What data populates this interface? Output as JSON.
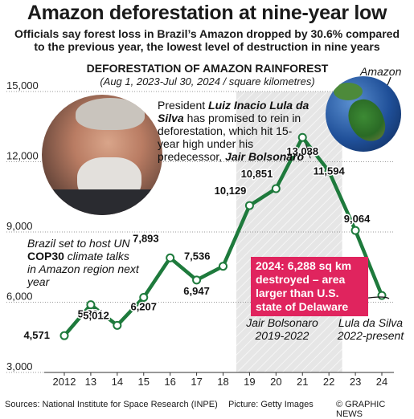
{
  "header": {
    "title": "Amazon deforestation at nine-year low",
    "subtitle_line1": "Officials say forest loss in Brazil’s Amazon dropped by 30.6% compared",
    "subtitle_line2": "to the previous year, the lowest level of destruction in nine years"
  },
  "chart_data": {
    "type": "line",
    "title": "DEFORESTATION OF AMAZON RAINFOREST",
    "subtitle": "(Aug 1, 2023-Jul 30, 2024 / square kilometres)",
    "x": [
      2012,
      2013,
      2014,
      2015,
      2016,
      2017,
      2018,
      2019,
      2020,
      2021,
      2022,
      2023,
      2024
    ],
    "x_tick_labels": [
      "2012",
      "13",
      "14",
      "15",
      "16",
      "17",
      "18",
      "19",
      "20",
      "21",
      "22",
      "23",
      "24"
    ],
    "series": [
      {
        "values": [
          4571,
          5891,
          5012,
          6207,
          7893,
          6947,
          7536,
          10129,
          10851,
          13038,
          11594,
          9064,
          6288
        ],
        "labels": [
          "4,571",
          "5,891",
          "5,012",
          "6,207",
          "7,893",
          "6,947",
          "7,536",
          "10,129",
          "10,851",
          "13,038",
          "11,594",
          "9,064",
          ""
        ]
      }
    ],
    "ylim": [
      3000,
      15000
    ],
    "y_ticks": [
      3000,
      6000,
      9000,
      12000,
      15000
    ],
    "y_tick_labels": [
      "3,000",
      "6,000",
      "9,000",
      "12,000",
      "15,000"
    ],
    "grid": "horizontal",
    "shaded_range": [
      2019,
      2022
    ],
    "colors": {
      "line": "#1e7a3c",
      "marker": "#ffffff",
      "shade": "#e6e6e6",
      "highlight": "#e0245e"
    }
  },
  "annotations": {
    "lula_text_pre": "President ",
    "lula_name": "Luiz Inacio Lula da Silva",
    "lula_text_mid": " has promised to rein in deforestation, which hit 15-year high under his predecessor, ",
    "bolsonaro_name": "Jair Bolsonaro",
    "cop_pre": "Brazil set to host UN ",
    "cop_name": "COP30",
    "cop_post": " climate talks in Amazon region next year",
    "highlight": "2024: 6,288 sq km destroyed – area larger than U.S. state of Delaware",
    "era1_name": "Jair Bolsonaro",
    "era1_years": "2019-2022",
    "era2_name": "Lula da Silva",
    "era2_years": "2022-present",
    "globe_label": "Amazon"
  },
  "footer": {
    "sources": "Sources: National Institute for Space Research (INPE)",
    "picture": "Picture: Getty Images",
    "credit": "© GRAPHIC NEWS"
  },
  "icons": {
    "portrait": "portrait-photo",
    "globe": "globe-icon"
  }
}
